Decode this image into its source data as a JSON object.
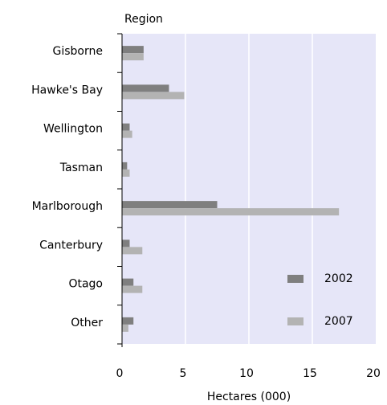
{
  "chart_data": {
    "type": "barh",
    "ylabel": "Region",
    "xlabel": "Hectares (000)",
    "categories": [
      "Gisborne",
      "Hawke's Bay",
      "Wellington",
      "Tasman",
      "Marlborough",
      "Canterbury",
      "Otago",
      "Other"
    ],
    "series": [
      {
        "name": "2002",
        "color": "#7f7f7f",
        "values": [
          1.7,
          3.7,
          0.6,
          0.4,
          7.5,
          0.6,
          0.9,
          0.9
        ]
      },
      {
        "name": "2007",
        "color": "#b3b3b3",
        "values": [
          1.7,
          4.9,
          0.8,
          0.6,
          17.1,
          1.6,
          1.6,
          0.5
        ]
      }
    ],
    "xlim": [
      0,
      20
    ],
    "xticks": [
      0,
      5,
      10,
      15,
      20
    ],
    "grid": true,
    "legend": "lower right"
  }
}
